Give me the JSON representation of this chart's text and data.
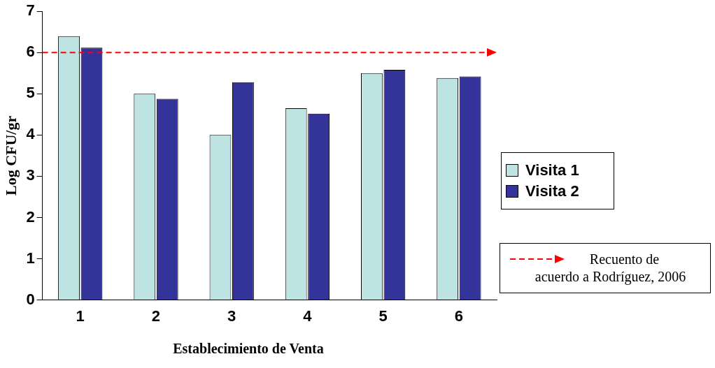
{
  "chart_data": {
    "type": "bar",
    "xlabel": "Establecimiento de Venta",
    "ylabel": "Log CFU/gr",
    "categories": [
      "1",
      "2",
      "3",
      "4",
      "5",
      "6"
    ],
    "series": [
      {
        "name": "Visita 1",
        "color": "#bde3e3",
        "values": [
          6.4,
          5.0,
          4.0,
          4.65,
          5.5,
          5.38
        ]
      },
      {
        "name": "Visita 2",
        "color": "#333399",
        "values": [
          6.12,
          4.88,
          5.28,
          4.52,
          5.58,
          5.42
        ]
      }
    ],
    "ylim": [
      0,
      7
    ],
    "yticks": [
      0,
      1,
      2,
      3,
      4,
      5,
      6,
      7
    ],
    "grid": false,
    "legend": "right",
    "ref_lines": [
      {
        "axis": "y",
        "value": 6,
        "label": "Recuento de acuerdo a Rodríguez, 2006",
        "color": "#ff0000",
        "line_style": "dashed"
      }
    ]
  }
}
